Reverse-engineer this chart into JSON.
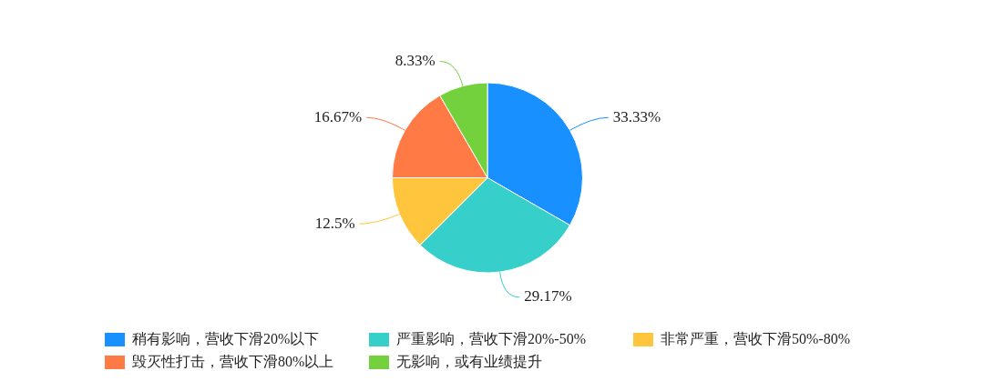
{
  "chart_data": {
    "type": "pie",
    "categories": [
      "稍有影响，营收下滑20%以下",
      "严重影响，营收下滑20%-50%",
      "非常严重，营收下滑50%-80%",
      "毁灭性打击，营收下滑80%以上",
      "无影响，或有业绩提升"
    ],
    "values": [
      33.33,
      29.17,
      12.5,
      16.67,
      8.33
    ],
    "colors": [
      "#1890ff",
      "#36cfc9",
      "#ffc53d",
      "#ff7a45",
      "#73d13d"
    ],
    "value_labels": [
      "33.33%",
      "29.17%",
      "12.5%",
      "16.67%",
      "8.33%"
    ],
    "legend": "bottom"
  }
}
